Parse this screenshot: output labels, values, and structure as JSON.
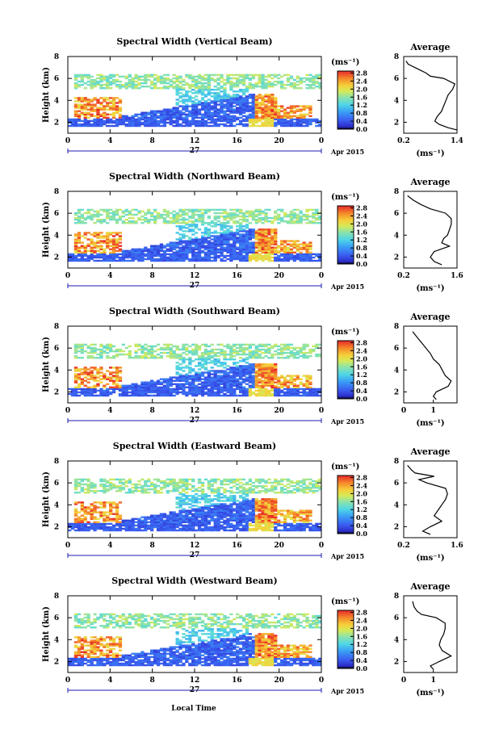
{
  "figure": {
    "date_label": "Apr 2015",
    "day_label": "27",
    "xlabel_bottom": "Local Time",
    "colorbar_unit": "(ms⁻¹)",
    "colorbar_ticks": [
      "0.0",
      "0.4",
      "0.8",
      "1.2",
      "1.6",
      "2.0",
      "2.4",
      "2.8"
    ],
    "colorbar_range": [
      0.0,
      2.9
    ],
    "avg_title": "Average",
    "avg_unit": "(ms⁻¹)"
  },
  "chart_data": [
    {
      "type": "heatmap",
      "title": "Spectral Width (Vertical Beam)",
      "ylabel": "Height (km)",
      "x_ticks": [
        "0",
        "4",
        "8",
        "12",
        "16",
        "20",
        "0"
      ],
      "y_ticks": [
        "2",
        "4",
        "6",
        "8"
      ],
      "xlim": [
        0,
        24
      ],
      "ylim": [
        1.0,
        8.0
      ],
      "average": {
        "title": "Average",
        "x_ticks": [
          "0.2",
          "1.4"
        ],
        "xlim": [
          0.2,
          1.4
        ],
        "y_ticks": [
          "2",
          "4",
          "6",
          "8"
        ],
        "ylim": [
          1.0,
          8.0
        ],
        "profile": [
          [
            1.3,
            1.4
          ],
          [
            1.5,
            1.2
          ],
          [
            1.8,
            1.0
          ],
          [
            2.1,
            0.9
          ],
          [
            2.5,
            0.95
          ],
          [
            3.0,
            1.05
          ],
          [
            3.5,
            1.1
          ],
          [
            4.0,
            1.15
          ],
          [
            4.5,
            1.2
          ],
          [
            5.0,
            1.3
          ],
          [
            5.5,
            1.35
          ],
          [
            6.0,
            1.1
          ],
          [
            6.2,
            0.8
          ],
          [
            6.5,
            0.7
          ],
          [
            6.8,
            0.55
          ],
          [
            7.0,
            0.45
          ],
          [
            7.3,
            0.3
          ],
          [
            7.6,
            0.25
          ]
        ]
      }
    },
    {
      "type": "heatmap",
      "title": "Spectral Width (Northward Beam)",
      "ylabel": "Height (km)",
      "x_ticks": [
        "0",
        "4",
        "8",
        "12",
        "16",
        "20",
        "0"
      ],
      "y_ticks": [
        "2",
        "4",
        "6",
        "8"
      ],
      "xlim": [
        0,
        24
      ],
      "ylim": [
        1.0,
        8.0
      ],
      "average": {
        "title": "Average",
        "x_ticks": [
          "0.2",
          "1.6"
        ],
        "xlim": [
          0.2,
          1.6
        ],
        "y_ticks": [
          "2",
          "4",
          "6",
          "8"
        ],
        "ylim": [
          1.0,
          8.0
        ],
        "profile": [
          [
            1.3,
            1.2
          ],
          [
            1.6,
            1.0
          ],
          [
            2.0,
            0.9
          ],
          [
            2.5,
            1.0
          ],
          [
            3.0,
            1.4
          ],
          [
            3.3,
            1.2
          ],
          [
            3.7,
            1.25
          ],
          [
            4.0,
            1.35
          ],
          [
            4.5,
            1.4
          ],
          [
            5.0,
            1.45
          ],
          [
            5.5,
            1.45
          ],
          [
            6.0,
            1.3
          ],
          [
            6.4,
            0.9
          ],
          [
            6.8,
            0.65
          ],
          [
            7.2,
            0.45
          ],
          [
            7.6,
            0.3
          ]
        ]
      }
    },
    {
      "type": "heatmap",
      "title": "Spectral Width (Southward Beam)",
      "ylabel": "Height (km)",
      "x_ticks": [
        "0",
        "4",
        "8",
        "12",
        "16",
        "20",
        "0"
      ],
      "y_ticks": [
        "2",
        "4",
        "6",
        "8"
      ],
      "xlim": [
        0,
        24
      ],
      "ylim": [
        1.0,
        8.0
      ],
      "average": {
        "title": "Average",
        "x_ticks": [
          "0",
          "1"
        ],
        "xlim": [
          0.0,
          1.8
        ],
        "y_ticks": [
          "2",
          "4",
          "6",
          "8"
        ],
        "ylim": [
          1.0,
          8.0
        ],
        "profile": [
          [
            1.3,
            1.1
          ],
          [
            1.6,
            1.0
          ],
          [
            2.0,
            1.1
          ],
          [
            2.5,
            1.5
          ],
          [
            3.0,
            1.6
          ],
          [
            3.5,
            1.4
          ],
          [
            4.0,
            1.3
          ],
          [
            4.5,
            1.2
          ],
          [
            5.0,
            1.0
          ],
          [
            5.5,
            0.9
          ],
          [
            6.0,
            0.75
          ],
          [
            6.5,
            0.6
          ],
          [
            7.0,
            0.45
          ],
          [
            7.5,
            0.3
          ]
        ]
      }
    },
    {
      "type": "heatmap",
      "title": "Spectral Width (Eastward Beam)",
      "ylabel": "Height (km)",
      "x_ticks": [
        "0",
        "4",
        "8",
        "12",
        "16",
        "20",
        "0"
      ],
      "y_ticks": [
        "2",
        "4",
        "6",
        "8"
      ],
      "xlim": [
        0,
        24
      ],
      "ylim": [
        1.0,
        8.0
      ],
      "average": {
        "title": "Average",
        "x_ticks": [
          "0.2",
          "1.6"
        ],
        "xlim": [
          0.2,
          1.6
        ],
        "y_ticks": [
          "2",
          "4",
          "6",
          "8"
        ],
        "ylim": [
          1.0,
          8.0
        ],
        "profile": [
          [
            1.3,
            0.9
          ],
          [
            1.6,
            0.7
          ],
          [
            2.0,
            0.9
          ],
          [
            2.5,
            1.2
          ],
          [
            3.0,
            1.0
          ],
          [
            3.5,
            1.1
          ],
          [
            4.0,
            1.2
          ],
          [
            4.5,
            1.3
          ],
          [
            5.0,
            1.35
          ],
          [
            5.5,
            1.3
          ],
          [
            6.0,
            0.8
          ],
          [
            6.3,
            0.6
          ],
          [
            6.6,
            1.0
          ],
          [
            6.9,
            0.5
          ],
          [
            7.2,
            0.4
          ],
          [
            7.6,
            0.3
          ]
        ]
      }
    },
    {
      "type": "heatmap",
      "title": "Spectral Width (Westward Beam)",
      "ylabel": "Height (km)",
      "x_ticks": [
        "0",
        "4",
        "8",
        "12",
        "16",
        "20",
        "0"
      ],
      "y_ticks": [
        "2",
        "4",
        "6",
        "8"
      ],
      "xlim": [
        0,
        24
      ],
      "ylim": [
        1.0,
        8.0
      ],
      "average": {
        "title": "Average",
        "x_ticks": [
          "0",
          "1"
        ],
        "xlim": [
          0.0,
          1.8
        ],
        "y_ticks": [
          "2",
          "4",
          "6",
          "8"
        ],
        "ylim": [
          1.0,
          8.0
        ],
        "profile": [
          [
            1.3,
            1.0
          ],
          [
            1.6,
            0.9
          ],
          [
            2.0,
            1.2
          ],
          [
            2.5,
            1.6
          ],
          [
            3.0,
            1.3
          ],
          [
            3.5,
            1.2
          ],
          [
            4.0,
            1.25
          ],
          [
            4.5,
            1.35
          ],
          [
            5.0,
            1.4
          ],
          [
            5.5,
            1.4
          ],
          [
            6.0,
            1.1
          ],
          [
            6.3,
            0.6
          ],
          [
            6.6,
            0.45
          ],
          [
            7.0,
            0.35
          ],
          [
            7.5,
            0.3
          ]
        ]
      }
    }
  ]
}
